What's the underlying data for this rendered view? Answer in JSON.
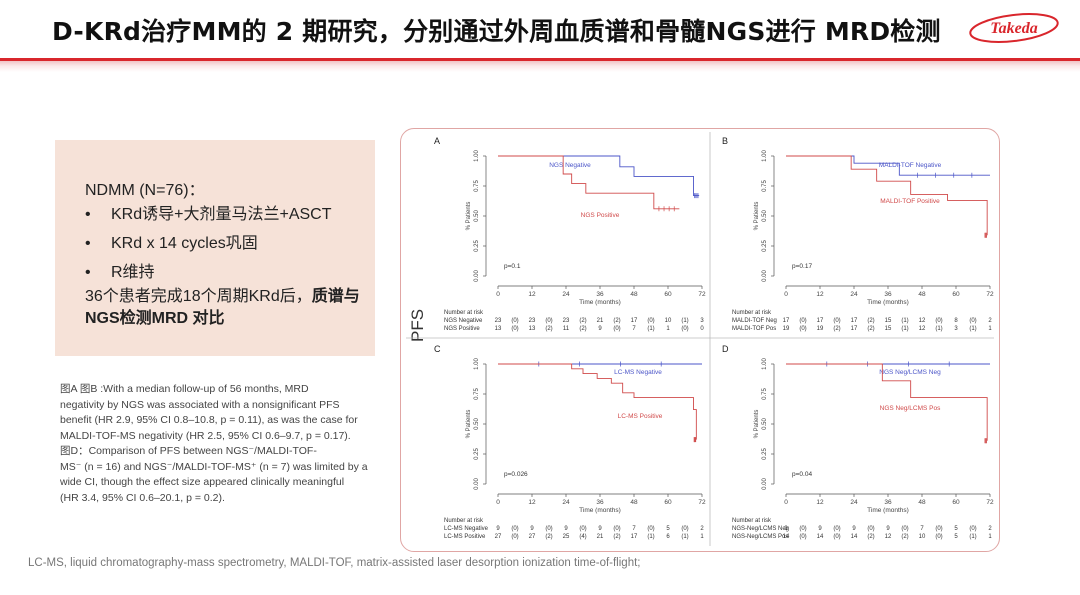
{
  "header": {
    "title": "D-KRd治疗MM的 2 期研究，分别通过外周血质谱和骨髓NGS进行 MRD检测",
    "logo_text": "Takeda"
  },
  "summary": {
    "heading": "NDMM (N=76)：",
    "bullets": [
      "KRd诱导+大剂量马法兰+ASCT",
      "KRd x 14 cycles巩固",
      "R维持"
    ],
    "note_plain": "36个患者完成18个周期KRd后，",
    "note_bold": "质谱与NGS检测MRD 对比"
  },
  "caption": {
    "lines": [
      "图A 图B :With a median follow-up of 56 months, MRD",
      "negativity by NGS was associated with a nonsignificant PFS",
      "benefit (HR 2.9, 95% CI 0.8–10.8, p = 0.11), as was the case for",
      "MALDI-TOF-MS negativity (HR 2.5, 95% CI 0.6–9.7, p = 0.17).",
      "图D：Comparison of PFS between NGS⁻/MALDI-TOF-",
      "MS⁻ (n = 16) and NGS⁻/MALDI-TOF-MS⁺ (n = 7) was limited by a",
      "wide CI, though the effect size appeared clinically meaningful",
      "(HR 3.4, 95% CI 0.6–20.1, p = 0.2)."
    ]
  },
  "footer": "LC-MS, liquid chromatography-mass spectrometry,  MALDI-TOF, matrix-assisted laser desorption ionization time-of-flight;",
  "pfs_label": "PFS",
  "colors": {
    "accent": "#d9262c",
    "negative": "#4b55c8",
    "positive": "#d04a4a",
    "frame": "#e0a6a4"
  },
  "chart_data": [
    {
      "type": "line",
      "panel": "A",
      "xlabel": "Time (months)",
      "ylabel": "% Patients",
      "xticks": [
        0,
        12,
        24,
        36,
        48,
        60,
        72
      ],
      "yticks": [
        "0.00",
        "0.25",
        "0.50",
        "0.75",
        "1.00"
      ],
      "xlim": [
        0,
        72
      ],
      "ylim": [
        0,
        1
      ],
      "pvalue": "p=0.1",
      "series": [
        {
          "name": "NGS Negative",
          "color": "negative",
          "x": [
            0,
            22,
            43,
            48,
            67,
            69,
            69,
            71
          ],
          "y": [
            1.0,
            1.0,
            0.91,
            0.83,
            0.83,
            0.83,
            0.67,
            0.67
          ]
        },
        {
          "name": "NGS Positive",
          "color": "positive",
          "x": [
            0,
            21,
            23,
            26,
            31,
            48,
            55,
            64
          ],
          "y": [
            1.0,
            1.0,
            0.85,
            0.77,
            0.69,
            0.69,
            0.56,
            0.56
          ]
        }
      ],
      "risk_header": "Number at risk",
      "risk_table": [
        {
          "label": "NGS Negative",
          "cells": [
            "23",
            "(0)",
            "23",
            "(0)",
            "23",
            "(2)",
            "21",
            "(2)",
            "17",
            "(0)",
            "10",
            "(1)",
            "3"
          ]
        },
        {
          "label": "NGS Positive",
          "cells": [
            "13",
            "(0)",
            "13",
            "(2)",
            "11",
            "(2)",
            "9",
            "(0)",
            "7",
            "(1)",
            "1",
            "(0)",
            "0"
          ]
        }
      ]
    },
    {
      "type": "line",
      "panel": "B",
      "xlabel": "Time (months)",
      "ylabel": "% Patients",
      "xticks": [
        0,
        12,
        24,
        36,
        48,
        60,
        72
      ],
      "yticks": [
        "0.00",
        "0.25",
        "0.50",
        "0.75",
        "1.00"
      ],
      "xlim": [
        0,
        72
      ],
      "ylim": [
        0,
        1
      ],
      "pvalue": "p=0.17",
      "series": [
        {
          "name": "MALDI-TOF Negative",
          "color": "negative",
          "x": [
            0,
            21,
            24,
            36,
            40,
            72
          ],
          "y": [
            1.0,
            1.0,
            0.94,
            0.94,
            0.84,
            0.84
          ]
        },
        {
          "name": "MALDI-TOF Positive",
          "color": "positive",
          "x": [
            0,
            21,
            23,
            32,
            44,
            57,
            70,
            71
          ],
          "y": [
            1.0,
            1.0,
            0.89,
            0.79,
            0.68,
            0.63,
            0.63,
            0.34
          ]
        }
      ],
      "risk_header": "Number at risk",
      "risk_table": [
        {
          "label": "MALDI-TOF Neg",
          "cells": [
            "17",
            "(0)",
            "17",
            "(0)",
            "17",
            "(2)",
            "15",
            "(1)",
            "12",
            "(0)",
            "8",
            "(0)",
            "2"
          ]
        },
        {
          "label": "MALDI-TOF Pos",
          "cells": [
            "19",
            "(0)",
            "19",
            "(2)",
            "17",
            "(2)",
            "15",
            "(1)",
            "12",
            "(1)",
            "3",
            "(1)",
            "1"
          ]
        }
      ]
    },
    {
      "type": "line",
      "panel": "C",
      "xlabel": "Time (months)",
      "ylabel": "% Patients",
      "xticks": [
        0,
        12,
        24,
        36,
        48,
        60,
        72
      ],
      "yticks": [
        "0.00",
        "0.25",
        "0.50",
        "0.75",
        "1.00"
      ],
      "xlim": [
        0,
        72
      ],
      "ylim": [
        0,
        1
      ],
      "pvalue": "p=0.026",
      "series": [
        {
          "name": "LC-MS Negative",
          "color": "negative",
          "x": [
            0,
            72
          ],
          "y": [
            1.0,
            1.0
          ]
        },
        {
          "name": "LC-MS Positive",
          "color": "positive",
          "x": [
            0,
            23,
            26,
            30,
            35,
            40,
            44,
            48,
            68,
            69,
            70
          ],
          "y": [
            1.0,
            1.0,
            0.96,
            0.92,
            0.88,
            0.84,
            0.76,
            0.72,
            0.72,
            0.62,
            0.37
          ]
        }
      ],
      "risk_header": "Number at risk",
      "risk_table": [
        {
          "label": "LC-MS Negative",
          "cells": [
            "9",
            "(0)",
            "9",
            "(0)",
            "9",
            "(0)",
            "9",
            "(0)",
            "7",
            "(0)",
            "5",
            "(0)",
            "2"
          ]
        },
        {
          "label": "LC-MS Positive",
          "cells": [
            "27",
            "(0)",
            "27",
            "(2)",
            "25",
            "(4)",
            "21",
            "(2)",
            "17",
            "(1)",
            "6",
            "(1)",
            "1"
          ]
        }
      ]
    },
    {
      "type": "line",
      "panel": "D",
      "xlabel": "Time (months)",
      "ylabel": "% Patients",
      "xticks": [
        0,
        12,
        24,
        36,
        48,
        60,
        72
      ],
      "yticks": [
        "0.00",
        "0.25",
        "0.50",
        "0.75",
        "1.00"
      ],
      "xlim": [
        0,
        72
      ],
      "ylim": [
        0,
        1
      ],
      "pvalue": "p=0.04",
      "series": [
        {
          "name": "NGS Neg/LCMS Neg",
          "color": "negative",
          "x": [
            0,
            72
          ],
          "y": [
            1.0,
            1.0
          ]
        },
        {
          "name": "NGS Neg/LCMS Pos",
          "color": "positive",
          "x": [
            0,
            32,
            34,
            44,
            70,
            71
          ],
          "y": [
            1.0,
            1.0,
            0.86,
            0.72,
            0.72,
            0.36
          ]
        }
      ],
      "risk_header": "Number at risk",
      "risk_table": [
        {
          "label": "NGS-Neg/LCMS Neg",
          "cells": [
            "9",
            "(0)",
            "9",
            "(0)",
            "9",
            "(0)",
            "9",
            "(0)",
            "7",
            "(0)",
            "5",
            "(0)",
            "2"
          ]
        },
        {
          "label": "NGS-Neg/LCMS Pos",
          "cells": [
            "14",
            "(0)",
            "14",
            "(0)",
            "14",
            "(2)",
            "12",
            "(2)",
            "10",
            "(0)",
            "5",
            "(1)",
            "1"
          ]
        }
      ]
    }
  ]
}
